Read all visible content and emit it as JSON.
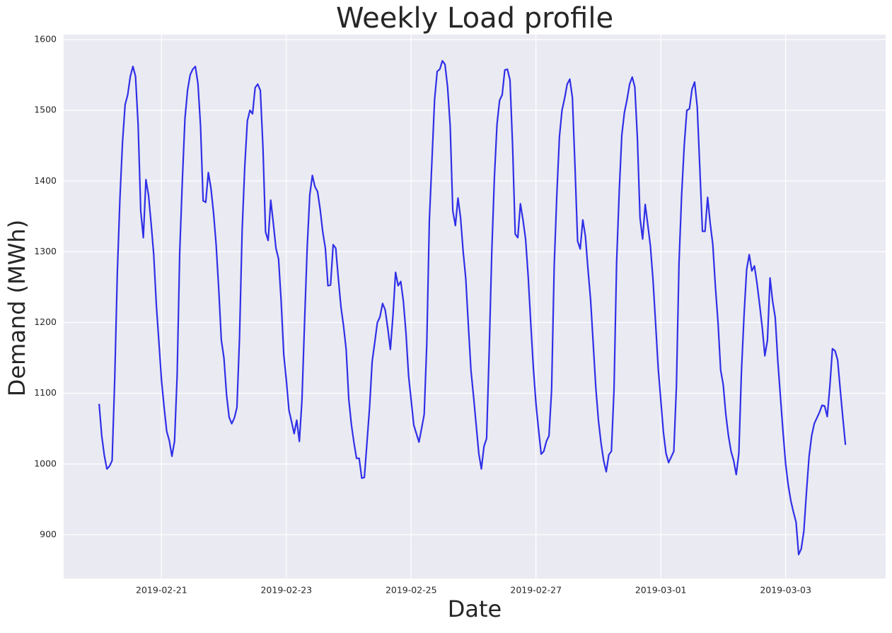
{
  "chart_data": {
    "type": "line",
    "title": "Weekly Load profile",
    "x_label": "Date",
    "y_label": "Demand (MWh)",
    "x": [
      "2019-02-20 00:00",
      "2019-02-20 01:00",
      "2019-02-20 02:00",
      "2019-02-20 03:00",
      "2019-02-20 04:00",
      "2019-02-20 05:00",
      "2019-02-20 06:00",
      "2019-02-20 07:00",
      "2019-02-20 08:00",
      "2019-02-20 09:00",
      "2019-02-20 10:00",
      "2019-02-20 11:00",
      "2019-02-20 12:00",
      "2019-02-20 13:00",
      "2019-02-20 14:00",
      "2019-02-20 15:00",
      "2019-02-20 16:00",
      "2019-02-20 17:00",
      "2019-02-20 18:00",
      "2019-02-20 19:00",
      "2019-02-20 20:00",
      "2019-02-20 21:00",
      "2019-02-20 22:00",
      "2019-02-20 23:00",
      "2019-02-21 00:00",
      "2019-02-21 01:00",
      "2019-02-21 02:00",
      "2019-02-21 03:00",
      "2019-02-21 04:00",
      "2019-02-21 05:00",
      "2019-02-21 06:00",
      "2019-02-21 07:00",
      "2019-02-21 08:00",
      "2019-02-21 09:00",
      "2019-02-21 10:00",
      "2019-02-21 11:00",
      "2019-02-21 12:00",
      "2019-02-21 13:00",
      "2019-02-21 14:00",
      "2019-02-21 15:00",
      "2019-02-21 16:00",
      "2019-02-21 17:00",
      "2019-02-21 18:00",
      "2019-02-21 19:00",
      "2019-02-21 20:00",
      "2019-02-21 21:00",
      "2019-02-21 22:00",
      "2019-02-21 23:00",
      "2019-02-22 00:00",
      "2019-02-22 01:00",
      "2019-02-22 02:00",
      "2019-02-22 03:00",
      "2019-02-22 04:00",
      "2019-02-22 05:00",
      "2019-02-22 06:00",
      "2019-02-22 07:00",
      "2019-02-22 08:00",
      "2019-02-22 09:00",
      "2019-02-22 10:00",
      "2019-02-22 11:00",
      "2019-02-22 12:00",
      "2019-02-22 13:00",
      "2019-02-22 14:00",
      "2019-02-22 15:00",
      "2019-02-22 16:00",
      "2019-02-22 17:00",
      "2019-02-22 18:00",
      "2019-02-22 19:00",
      "2019-02-22 20:00",
      "2019-02-22 21:00",
      "2019-02-22 22:00",
      "2019-02-22 23:00",
      "2019-02-23 00:00",
      "2019-02-23 01:00",
      "2019-02-23 02:00",
      "2019-02-23 03:00",
      "2019-02-23 04:00",
      "2019-02-23 05:00",
      "2019-02-23 06:00",
      "2019-02-23 07:00",
      "2019-02-23 08:00",
      "2019-02-23 09:00",
      "2019-02-23 10:00",
      "2019-02-23 11:00",
      "2019-02-23 12:00",
      "2019-02-23 13:00",
      "2019-02-23 14:00",
      "2019-02-23 15:00",
      "2019-02-23 16:00",
      "2019-02-23 17:00",
      "2019-02-23 18:00",
      "2019-02-23 19:00",
      "2019-02-23 20:00",
      "2019-02-23 21:00",
      "2019-02-23 22:00",
      "2019-02-23 23:00",
      "2019-02-24 00:00",
      "2019-02-24 01:00",
      "2019-02-24 02:00",
      "2019-02-24 03:00",
      "2019-02-24 04:00",
      "2019-02-24 05:00",
      "2019-02-24 06:00",
      "2019-02-24 07:00",
      "2019-02-24 08:00",
      "2019-02-24 09:00",
      "2019-02-24 10:00",
      "2019-02-24 11:00",
      "2019-02-24 12:00",
      "2019-02-24 13:00",
      "2019-02-24 14:00",
      "2019-02-24 15:00",
      "2019-02-24 16:00",
      "2019-02-24 17:00",
      "2019-02-24 18:00",
      "2019-02-24 19:00",
      "2019-02-24 20:00",
      "2019-02-24 21:00",
      "2019-02-24 22:00",
      "2019-02-24 23:00",
      "2019-02-25 00:00",
      "2019-02-25 01:00",
      "2019-02-25 02:00",
      "2019-02-25 03:00",
      "2019-02-25 04:00",
      "2019-02-25 05:00",
      "2019-02-25 06:00",
      "2019-02-25 07:00",
      "2019-02-25 08:00",
      "2019-02-25 09:00",
      "2019-02-25 10:00",
      "2019-02-25 11:00",
      "2019-02-25 12:00",
      "2019-02-25 13:00",
      "2019-02-25 14:00",
      "2019-02-25 15:00",
      "2019-02-25 16:00",
      "2019-02-25 17:00",
      "2019-02-25 18:00",
      "2019-02-25 19:00",
      "2019-02-25 20:00",
      "2019-02-25 21:00",
      "2019-02-25 22:00",
      "2019-02-25 23:00",
      "2019-02-26 00:00",
      "2019-02-26 01:00",
      "2019-02-26 02:00",
      "2019-02-26 03:00",
      "2019-02-26 04:00",
      "2019-02-26 05:00",
      "2019-02-26 06:00",
      "2019-02-26 07:00",
      "2019-02-26 08:00",
      "2019-02-26 09:00",
      "2019-02-26 10:00",
      "2019-02-26 11:00",
      "2019-02-26 12:00",
      "2019-02-26 13:00",
      "2019-02-26 14:00",
      "2019-02-26 15:00",
      "2019-02-26 16:00",
      "2019-02-26 17:00",
      "2019-02-26 18:00",
      "2019-02-26 19:00",
      "2019-02-26 20:00",
      "2019-02-26 21:00",
      "2019-02-26 22:00",
      "2019-02-26 23:00",
      "2019-02-27 00:00",
      "2019-02-27 01:00",
      "2019-02-27 02:00",
      "2019-02-27 03:00",
      "2019-02-27 04:00",
      "2019-02-27 05:00",
      "2019-02-27 06:00",
      "2019-02-27 07:00",
      "2019-02-27 08:00",
      "2019-02-27 09:00",
      "2019-02-27 10:00",
      "2019-02-27 11:00",
      "2019-02-27 12:00",
      "2019-02-27 13:00",
      "2019-02-27 14:00",
      "2019-02-27 15:00",
      "2019-02-27 16:00",
      "2019-02-27 17:00",
      "2019-02-27 18:00",
      "2019-02-27 19:00",
      "2019-02-27 20:00",
      "2019-02-27 21:00",
      "2019-02-27 22:00",
      "2019-02-27 23:00",
      "2019-02-28 00:00",
      "2019-02-28 01:00",
      "2019-02-28 02:00",
      "2019-02-28 03:00",
      "2019-02-28 04:00",
      "2019-02-28 05:00",
      "2019-02-28 06:00",
      "2019-02-28 07:00",
      "2019-02-28 08:00",
      "2019-02-28 09:00",
      "2019-02-28 10:00",
      "2019-02-28 11:00",
      "2019-02-28 12:00",
      "2019-02-28 13:00",
      "2019-02-28 14:00",
      "2019-02-28 15:00",
      "2019-02-28 16:00",
      "2019-02-28 17:00",
      "2019-02-28 18:00",
      "2019-02-28 19:00",
      "2019-02-28 20:00",
      "2019-02-28 21:00",
      "2019-02-28 22:00",
      "2019-02-28 23:00",
      "2019-03-01 00:00",
      "2019-03-01 01:00",
      "2019-03-01 02:00",
      "2019-03-01 03:00",
      "2019-03-01 04:00",
      "2019-03-01 05:00",
      "2019-03-01 06:00",
      "2019-03-01 07:00",
      "2019-03-01 08:00",
      "2019-03-01 09:00",
      "2019-03-01 10:00",
      "2019-03-01 11:00",
      "2019-03-01 12:00",
      "2019-03-01 13:00",
      "2019-03-01 14:00",
      "2019-03-01 15:00",
      "2019-03-01 16:00",
      "2019-03-01 17:00",
      "2019-03-01 18:00",
      "2019-03-01 19:00",
      "2019-03-01 20:00",
      "2019-03-01 21:00",
      "2019-03-01 22:00",
      "2019-03-01 23:00",
      "2019-03-02 00:00",
      "2019-03-02 01:00",
      "2019-03-02 02:00",
      "2019-03-02 03:00",
      "2019-03-02 04:00",
      "2019-03-02 05:00",
      "2019-03-02 06:00",
      "2019-03-02 07:00",
      "2019-03-02 08:00",
      "2019-03-02 09:00",
      "2019-03-02 10:00",
      "2019-03-02 11:00",
      "2019-03-02 12:00",
      "2019-03-02 13:00",
      "2019-03-02 14:00",
      "2019-03-02 15:00",
      "2019-03-02 16:00",
      "2019-03-02 17:00",
      "2019-03-02 18:00",
      "2019-03-02 19:00",
      "2019-03-02 20:00",
      "2019-03-02 21:00",
      "2019-03-02 22:00",
      "2019-03-02 23:00",
      "2019-03-03 00:00",
      "2019-03-03 01:00",
      "2019-03-03 02:00",
      "2019-03-03 03:00",
      "2019-03-03 04:00",
      "2019-03-03 05:00",
      "2019-03-03 06:00",
      "2019-03-03 07:00",
      "2019-03-03 08:00",
      "2019-03-03 09:00",
      "2019-03-03 10:00",
      "2019-03-03 11:00",
      "2019-03-03 12:00",
      "2019-03-03 13:00",
      "2019-03-03 14:00",
      "2019-03-03 15:00",
      "2019-03-03 16:00",
      "2019-03-03 17:00",
      "2019-03-03 18:00",
      "2019-03-03 19:00",
      "2019-03-03 20:00",
      "2019-03-03 21:00",
      "2019-03-03 22:00",
      "2019-03-03 23:00"
    ],
    "values": [
      1085,
      1040,
      1012,
      993,
      997,
      1005,
      1120,
      1270,
      1375,
      1455,
      1508,
      1522,
      1548,
      1562,
      1548,
      1480,
      1358,
      1320,
      1402,
      1380,
      1340,
      1296,
      1225,
      1172,
      1118,
      1080,
      1046,
      1033,
      1011,
      1032,
      1125,
      1300,
      1400,
      1488,
      1528,
      1550,
      1558,
      1562,
      1538,
      1478,
      1372,
      1370,
      1412,
      1390,
      1355,
      1310,
      1247,
      1175,
      1150,
      1098,
      1066,
      1057,
      1065,
      1080,
      1180,
      1330,
      1420,
      1485,
      1500,
      1495,
      1532,
      1537,
      1528,
      1448,
      1328,
      1316,
      1373,
      1340,
      1305,
      1290,
      1230,
      1155,
      1118,
      1076,
      1060,
      1043,
      1062,
      1032,
      1090,
      1200,
      1305,
      1380,
      1408,
      1392,
      1385,
      1360,
      1328,
      1305,
      1252,
      1253,
      1310,
      1305,
      1262,
      1222,
      1195,
      1162,
      1092,
      1056,
      1030,
      1008,
      1008,
      980,
      981,
      1030,
      1080,
      1145,
      1172,
      1200,
      1208,
      1227,
      1218,
      1192,
      1162,
      1210,
      1271,
      1252,
      1258,
      1230,
      1185,
      1125,
      1090,
      1055,
      1043,
      1031,
      1050,
      1070,
      1170,
      1345,
      1430,
      1515,
      1555,
      1558,
      1570,
      1565,
      1533,
      1478,
      1358,
      1337,
      1376,
      1348,
      1300,
      1262,
      1195,
      1132,
      1095,
      1055,
      1015,
      993,
      1025,
      1036,
      1160,
      1300,
      1405,
      1480,
      1514,
      1522,
      1557,
      1558,
      1543,
      1450,
      1325,
      1320,
      1368,
      1345,
      1318,
      1265,
      1198,
      1135,
      1085,
      1048,
      1014,
      1018,
      1032,
      1040,
      1105,
      1280,
      1380,
      1462,
      1500,
      1517,
      1537,
      1544,
      1518,
      1420,
      1315,
      1304,
      1345,
      1322,
      1275,
      1232,
      1170,
      1108,
      1062,
      1030,
      1005,
      989,
      1013,
      1018,
      1105,
      1285,
      1385,
      1465,
      1497,
      1515,
      1537,
      1547,
      1533,
      1460,
      1348,
      1318,
      1367,
      1338,
      1308,
      1260,
      1198,
      1135,
      1090,
      1045,
      1015,
      1002,
      1010,
      1018,
      1110,
      1285,
      1380,
      1450,
      1500,
      1502,
      1530,
      1540,
      1505,
      1418,
      1329,
      1329,
      1377,
      1340,
      1310,
      1250,
      1200,
      1133,
      1112,
      1070,
      1040,
      1018,
      1005,
      985,
      1015,
      1130,
      1210,
      1275,
      1296,
      1273,
      1280,
      1255,
      1225,
      1193,
      1153,
      1175,
      1263,
      1230,
      1207,
      1145,
      1095,
      1045,
      1000,
      970,
      948,
      932,
      918,
      872,
      880,
      905,
      960,
      1010,
      1040,
      1057,
      1065,
      1073,
      1083,
      1082,
      1067,
      1110,
      1163,
      1160,
      1147,
      1105,
      1065,
      1027
    ],
    "color": "#2f2fe8",
    "xlim": [
      "2019-02-19 10:22",
      "2019-03-04 14:27"
    ],
    "xticks": [
      "2019-02-21",
      "2019-02-23",
      "2019-02-25",
      "2019-02-27",
      "2019-03-01",
      "2019-03-03"
    ],
    "ylim": [
      838,
      1607
    ],
    "yticks": [
      900,
      1000,
      1100,
      1200,
      1300,
      1400,
      1500,
      1600
    ],
    "grid": true
  }
}
